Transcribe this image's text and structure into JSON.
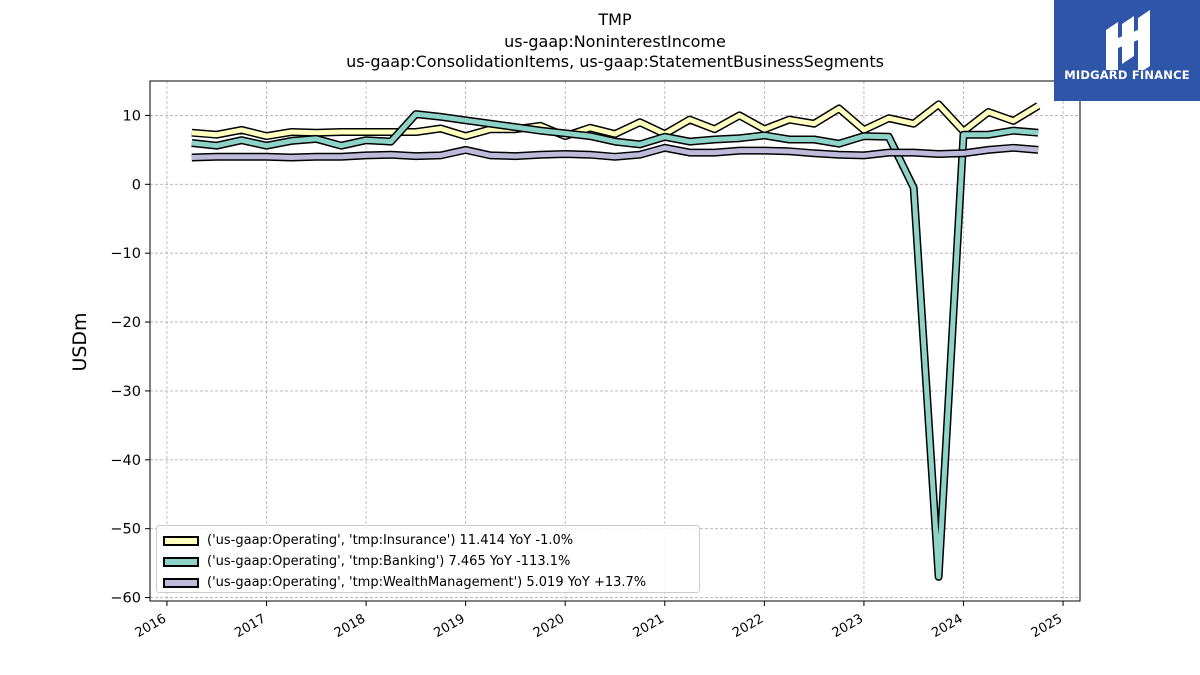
{
  "titles": {
    "line1": "TMP",
    "line2": "us-gaap:NoninterestIncome",
    "line3": "us-gaap:ConsolidationItems, us-gaap:StatementBusinessSegments"
  },
  "logo": {
    "text": "MIDGARD FINANCE",
    "color": "#2e55a8"
  },
  "chart_data": {
    "type": "line",
    "ylabel": "USDm",
    "xlabel": "",
    "ylim": [
      -60.5,
      15
    ],
    "xlim": [
      2015.83,
      2025.17
    ],
    "y_ticks": [
      {
        "value": 10,
        "label": "10"
      },
      {
        "value": 0,
        "label": "0"
      },
      {
        "value": -10,
        "label": "−10"
      },
      {
        "value": -20,
        "label": "−20"
      },
      {
        "value": -30,
        "label": "−30"
      },
      {
        "value": -40,
        "label": "−40"
      },
      {
        "value": -50,
        "label": "−50"
      },
      {
        "value": -60,
        "label": "−60"
      }
    ],
    "x_ticks": [
      {
        "value": 2016,
        "label": "2016"
      },
      {
        "value": 2017,
        "label": "2017"
      },
      {
        "value": 2018,
        "label": "2018"
      },
      {
        "value": 2019,
        "label": "2019"
      },
      {
        "value": 2020,
        "label": "2020"
      },
      {
        "value": 2021,
        "label": "2021"
      },
      {
        "value": 2022,
        "label": "2022"
      },
      {
        "value": 2023,
        "label": "2023"
      },
      {
        "value": 2024,
        "label": "2024"
      },
      {
        "value": 2025,
        "label": "2025"
      }
    ],
    "grid": true,
    "legend_position": "lower-left",
    "x": [
      2016.25,
      2016.5,
      2016.75,
      2017.0,
      2017.25,
      2017.5,
      2017.75,
      2018.0,
      2018.25,
      2018.5,
      2018.75,
      2019.0,
      2019.25,
      2019.5,
      2019.75,
      2020.0,
      2020.25,
      2020.5,
      2020.75,
      2021.0,
      2021.25,
      2021.5,
      2021.75,
      2022.0,
      2022.25,
      2022.5,
      2022.75,
      2023.0,
      2023.25,
      2023.5,
      2023.75,
      2024.0,
      2024.25,
      2024.5,
      2024.75
    ],
    "series": [
      {
        "name": "('us-gaap:Operating', 'tmp:Insurance') 11.414 YoY -1.0%",
        "color": "#ffffbf",
        "values": [
          7.5,
          7.2,
          7.9,
          7.0,
          7.6,
          7.5,
          7.6,
          7.6,
          7.6,
          7.6,
          8.1,
          7.0,
          8.0,
          8.0,
          8.5,
          7.0,
          8.2,
          7.3,
          9.0,
          7.3,
          9.4,
          8.0,
          10.0,
          8.0,
          9.4,
          8.8,
          11.0,
          7.9,
          9.6,
          8.8,
          11.6,
          7.7,
          10.5,
          9.2,
          11.4
        ]
      },
      {
        "name": "('us-gaap:Operating', 'tmp:Banking') 7.465 YoY -113.1%",
        "color": "#8dd3c7",
        "values": [
          6.0,
          5.6,
          6.4,
          5.6,
          6.3,
          6.6,
          5.6,
          6.4,
          6.2,
          10.2,
          9.8,
          9.3,
          8.8,
          8.3,
          7.8,
          7.4,
          7.0,
          6.2,
          5.8,
          6.9,
          6.2,
          6.5,
          6.7,
          7.1,
          6.5,
          6.5,
          5.9,
          7.0,
          6.9,
          -0.5,
          -57.0,
          7.2,
          7.2,
          7.8,
          7.5
        ]
      },
      {
        "name": "('us-gaap:Operating', 'tmp:WealthManagement') 5.019 YoY +13.7%",
        "color": "#bebada",
        "values": [
          3.9,
          4.0,
          4.0,
          4.0,
          3.9,
          4.0,
          4.0,
          4.2,
          4.3,
          4.1,
          4.2,
          5.0,
          4.2,
          4.1,
          4.3,
          4.4,
          4.3,
          4.0,
          4.3,
          5.3,
          4.6,
          4.6,
          4.9,
          4.9,
          4.8,
          4.5,
          4.3,
          4.2,
          4.6,
          4.6,
          4.4,
          4.5,
          5.0,
          5.3,
          5.0
        ]
      }
    ]
  }
}
